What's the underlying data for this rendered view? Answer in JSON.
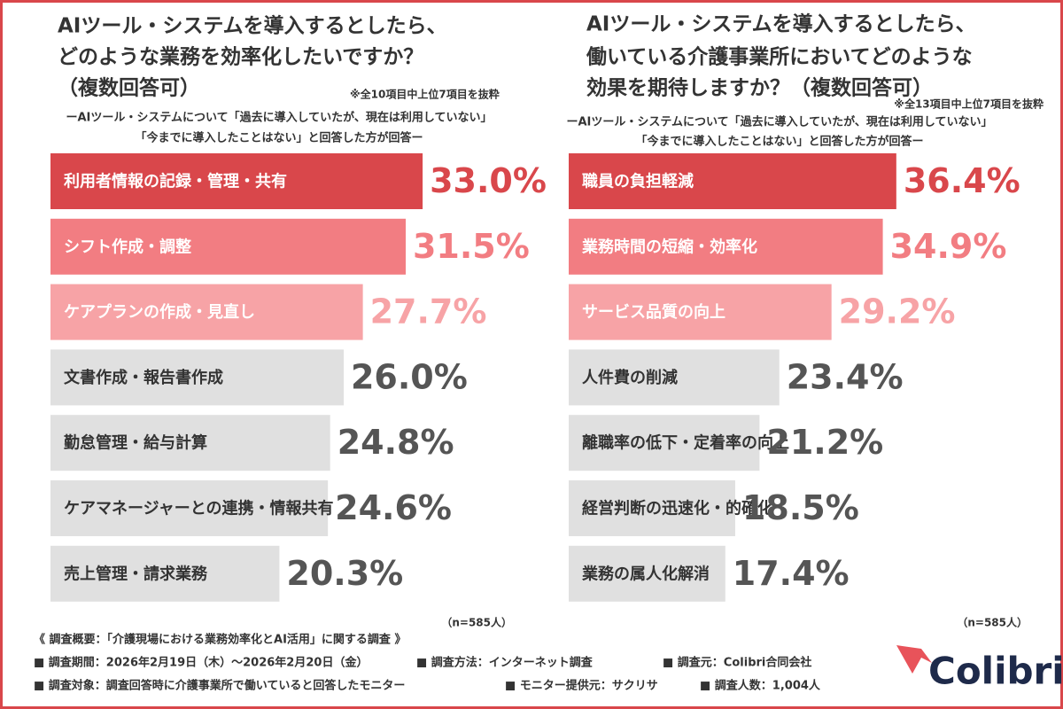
{
  "chart_data": [
    {
      "type": "bar",
      "orientation": "horizontal",
      "title": [
        "AIツール・システムを導入するとしたら、",
        "どのような業務を効率化したいですか？",
        "（複数回答可）"
      ],
      "note": "※全10項目中上位7項目を抜粋",
      "subtitle": [
        "ーAIツール・システムについて「過去に導入していたが、現在は利用していない」",
        "「今までに導入したことはない」と回答した方が回答ー"
      ],
      "categories": [
        "利用者情報の記録・管理・共有",
        "シフト作成・調整",
        "ケアプランの作成・見直し",
        "文書作成・報告書作成",
        "勤怠管理・給与計算",
        "ケアマネージャーとの連携・情報共有",
        "売上管理・請求業務"
      ],
      "values": [
        33.0,
        31.5,
        27.7,
        26.0,
        24.8,
        24.6,
        20.3
      ],
      "value_labels": [
        "33.0%",
        "31.5%",
        "27.7%",
        "26.0%",
        "24.8%",
        "24.6%",
        "20.3%"
      ],
      "colors": [
        "#d9474b",
        "#f27d82",
        "#f7a3a6",
        "#e0e0e0",
        "#e0e0e0",
        "#e0e0e0",
        "#e0e0e0"
      ],
      "label_colors": [
        "#d9474b",
        "#f27d82",
        "#f7a3a6",
        "#555555",
        "#555555",
        "#555555",
        "#555555"
      ],
      "sample": "（n=585人）"
    },
    {
      "type": "bar",
      "orientation": "horizontal",
      "title": [
        "AIツール・システムを導入するとしたら、",
        "働いている介護事業所においてどのような",
        "効果を期待しますか？（複数回答可）"
      ],
      "note": "※全13項目中上位7項目を抜粋",
      "subtitle": [
        "ーAIツール・システムについて「過去に導入していたが、現在は利用していない」",
        "「今までに導入したことはない」と回答した方が回答ー"
      ],
      "categories": [
        "職員の負担軽減",
        "業務時間の短縮・効率化",
        "サービス品質の向上",
        "人件費の削減",
        "離職率の低下・定着率の向上",
        "経営判断の迅速化・的確化",
        "業務の属人化解消"
      ],
      "values": [
        36.4,
        34.9,
        29.2,
        23.4,
        21.2,
        18.5,
        17.4
      ],
      "value_labels": [
        "36.4%",
        "34.9%",
        "29.2%",
        "23.4%",
        "21.2%",
        "18.5%",
        "17.4%"
      ],
      "colors": [
        "#d9474b",
        "#f27d82",
        "#f7a3a6",
        "#e0e0e0",
        "#e0e0e0",
        "#e0e0e0",
        "#e0e0e0"
      ],
      "label_colors": [
        "#d9474b",
        "#f27d82",
        "#f7a3a6",
        "#555555",
        "#555555",
        "#555555",
        "#555555"
      ],
      "sample": "（n=585人）"
    }
  ],
  "footer": {
    "heading": "《 調査概要：「介護現場における業務効率化とAI活用」に関する調査 》",
    "items": [
      "■ 調査期間：2026年2月19日（木）～2026年2月20日（金）",
      "■ 調査方法：インターネット調査",
      "■ 調査元：Colibri合同会社",
      "■ 調査対象：調査回答時に介護事業所で働いていると回答したモニター",
      "■ モニター提供元：サクリサ",
      "■ 調査人数：1,004人"
    ],
    "logo": "Colibri"
  }
}
